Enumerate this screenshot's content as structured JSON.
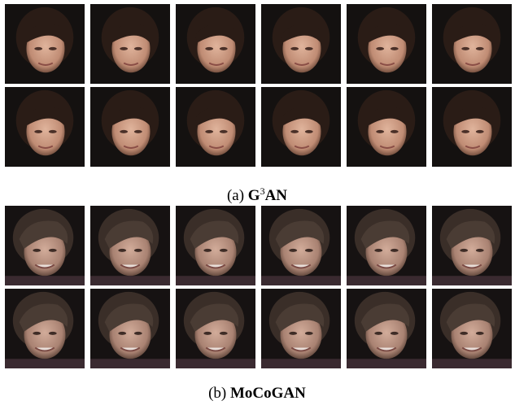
{
  "figure": {
    "panels": [
      {
        "label": "(a)",
        "name": "G",
        "name_sup": "3",
        "name_rest": "AN"
      },
      {
        "label": "(b)",
        "name": "MoCoGAN"
      }
    ]
  }
}
